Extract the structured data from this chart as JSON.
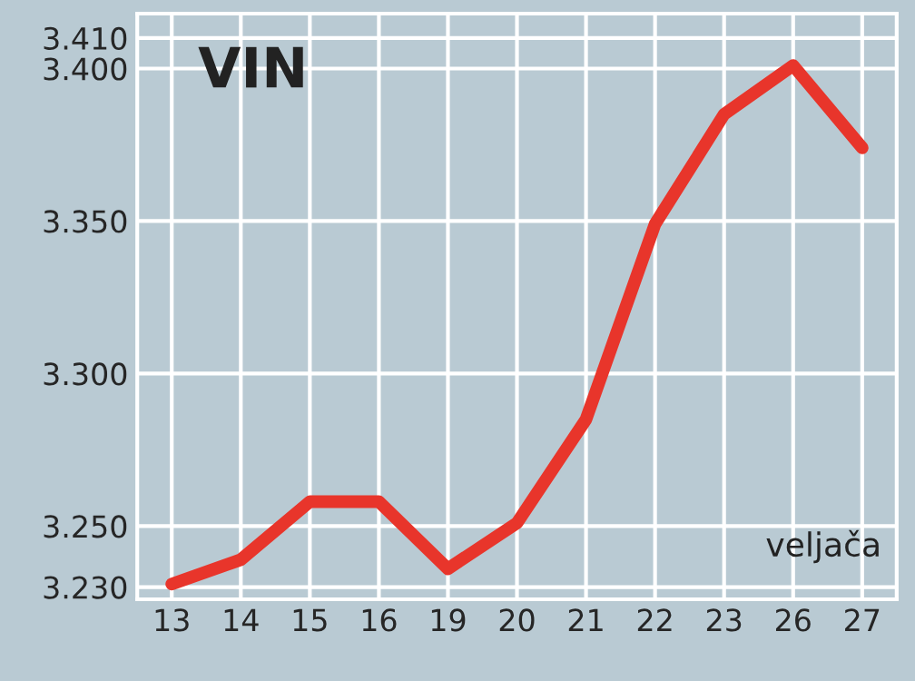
{
  "chart_data": {
    "type": "line",
    "title": "VIN",
    "xlabel": "veljača",
    "categories": [
      "13",
      "14",
      "15",
      "16",
      "19",
      "20",
      "21",
      "22",
      "23",
      "26",
      "27"
    ],
    "series": [
      {
        "color": "#e8352b",
        "values": [
          3231,
          3239,
          3258,
          3258,
          3236,
          3251,
          3285,
          3349,
          3385,
          3401,
          3374
        ]
      }
    ],
    "ylim": [
      3226,
      3418
    ],
    "yticks": [
      {
        "value": 3230,
        "label": "3.230"
      },
      {
        "value": 3250,
        "label": "3.250"
      },
      {
        "value": 3300,
        "label": "3.300"
      },
      {
        "value": 3350,
        "label": "3.350"
      },
      {
        "value": 3400,
        "label": "3.400"
      },
      {
        "value": 3410,
        "label": "3.410"
      }
    ],
    "grid": true,
    "marker": "none",
    "line_style": "solid",
    "legend": false
  }
}
